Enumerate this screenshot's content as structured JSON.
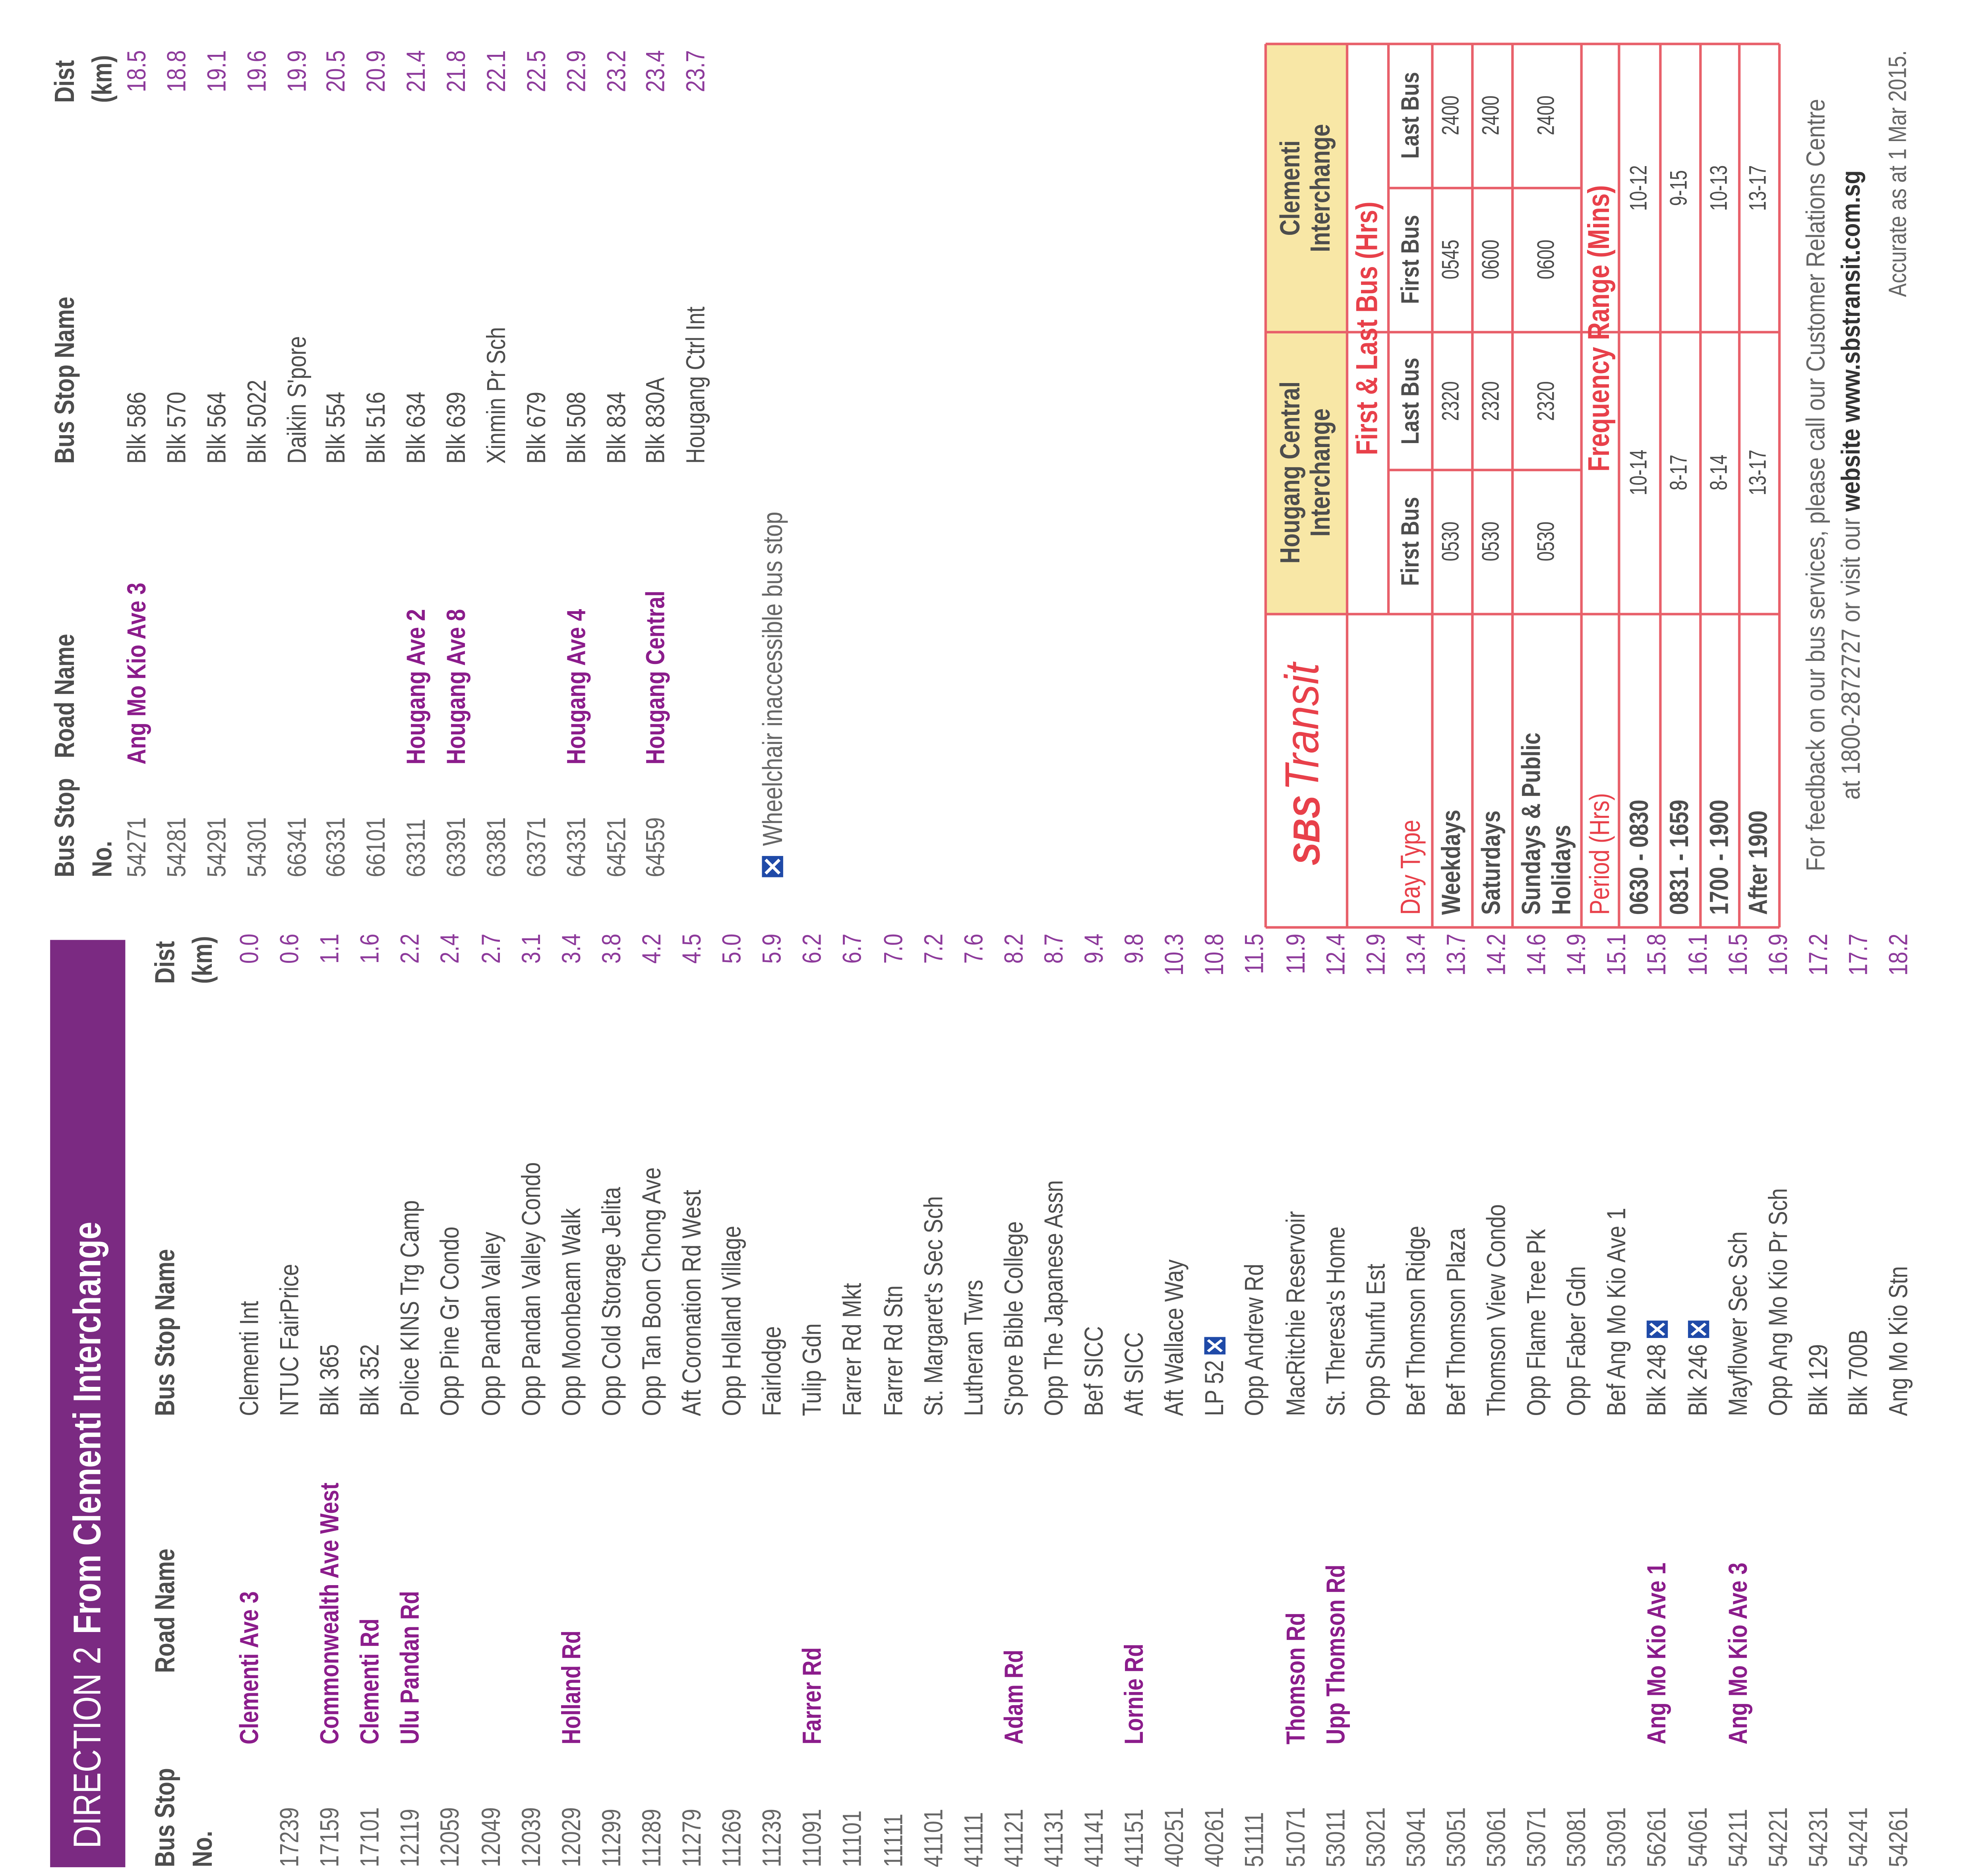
{
  "direction_table": {
    "title": "DIRECTION 2",
    "subtitle": "From Clementi Interchange",
    "headers": [
      "Bus Stop No.",
      "Road Name",
      "Bus Stop Name",
      "Dist (km)"
    ],
    "rows": [
      {
        "road": "Clementi Ave 3",
        "name": "Clementi Int",
        "dist": "0.0"
      },
      {
        "stop_no": "17239",
        "name": "NTUC FairPrice",
        "dist": "0.6"
      },
      {
        "stop_no": "17159",
        "road": "Commonwealth Ave West",
        "name": "Blk 365",
        "dist": "1.1"
      },
      {
        "stop_no": "17101",
        "road": "Clementi Rd",
        "name": "Blk 352",
        "dist": "1.6"
      },
      {
        "stop_no": "12119",
        "road": "Ulu Pandan Rd",
        "name": "Police KINS Trg Camp",
        "dist": "2.2"
      },
      {
        "stop_no": "12059",
        "name": "Opp Pine Gr Condo",
        "dist": "2.4"
      },
      {
        "stop_no": "12049",
        "name": "Opp Pandan Valley",
        "dist": "2.7"
      },
      {
        "stop_no": "12039",
        "name": "Opp Pandan Valley Condo",
        "dist": "3.1"
      },
      {
        "stop_no": "12029",
        "road": "Holland Rd",
        "name": "Opp Moonbeam Walk",
        "dist": "3.4"
      },
      {
        "stop_no": "11299",
        "name": "Opp Cold Storage Jelita",
        "dist": "3.8"
      },
      {
        "stop_no": "11289",
        "name": "Opp Tan Boon Chong Ave",
        "dist": "4.2"
      },
      {
        "stop_no": "11279",
        "name": "Aft Coronation Rd West",
        "dist": "4.5"
      },
      {
        "stop_no": "11269",
        "name": "Opp Holland Village",
        "dist": "5.0"
      },
      {
        "stop_no": "11239",
        "name": "Fairlodge",
        "dist": "5.9"
      },
      {
        "stop_no": "11091",
        "road": "Farrer Rd",
        "name": "Tulip Gdn",
        "dist": "6.2"
      },
      {
        "stop_no": "11101",
        "name": "Farrer Rd Mkt",
        "dist": "6.7"
      },
      {
        "stop_no": "11111",
        "name": "Farrer Rd Stn",
        "dist": "7.0"
      },
      {
        "stop_no": "41101",
        "name": "St. Margaret's Sec Sch",
        "dist": "7.2"
      },
      {
        "stop_no": "41111",
        "name": "Lutheran Twrs",
        "dist": "7.6"
      },
      {
        "stop_no": "41121",
        "road": "Adam Rd",
        "name": "S'pore Bible College",
        "dist": "8.2"
      },
      {
        "stop_no": "41131",
        "name": "Opp The Japanese Assn",
        "dist": "8.7"
      },
      {
        "stop_no": "41141",
        "name": "Bef SICC",
        "dist": "9.4"
      },
      {
        "stop_no": "41151",
        "road": "Lornie Rd",
        "name": "Aft SICC",
        "dist": "9.8"
      },
      {
        "stop_no": "40251",
        "name": "Aft Wallace Way",
        "dist": "10.3"
      },
      {
        "stop_no": "40261",
        "name": "LP 52",
        "dist": "10.8",
        "inaccessible": true
      },
      {
        "stop_no": "51111",
        "name": "Opp Andrew Rd",
        "dist": "11.5"
      },
      {
        "stop_no": "51071",
        "road": "Thomson Rd",
        "name": "MacRitchie Reservoir",
        "dist": "11.9"
      },
      {
        "stop_no": "53011",
        "road": "Upp Thomson Rd",
        "name": "St. Theresa's Home",
        "dist": "12.4"
      },
      {
        "stop_no": "53021",
        "name": "Opp Shunfu Est",
        "dist": "12.9"
      },
      {
        "stop_no": "53041",
        "name": "Bef Thomson Ridge",
        "dist": "13.4"
      },
      {
        "stop_no": "53051",
        "name": "Bef Thomson Plaza",
        "dist": "13.7"
      },
      {
        "stop_no": "53061",
        "name": "Thomson View Condo",
        "dist": "14.2"
      },
      {
        "stop_no": "53071",
        "name": "Opp Flame Tree Pk",
        "dist": "14.6"
      },
      {
        "stop_no": "53081",
        "name": "Opp Faber Gdn",
        "dist": "14.9"
      },
      {
        "stop_no": "53091",
        "name": "Bef Ang Mo Kio Ave 1",
        "dist": "15.1"
      },
      {
        "stop_no": "56261",
        "road": "Ang Mo Kio Ave 1",
        "name": "Blk 248",
        "dist": "15.8",
        "inaccessible": true
      },
      {
        "stop_no": "54061",
        "name": "Blk 246",
        "dist": "16.1",
        "inaccessible": true
      },
      {
        "stop_no": "54211",
        "road": "Ang Mo Kio Ave 3",
        "name": "Mayflower Sec Sch",
        "dist": "16.5"
      },
      {
        "stop_no": "54221",
        "name": "Opp Ang Mo Kio Pr Sch",
        "dist": "16.9"
      },
      {
        "stop_no": "54231",
        "name": "Blk 129",
        "dist": "17.2"
      },
      {
        "stop_no": "54241",
        "name": "Blk 700B",
        "dist": "17.7"
      },
      {
        "stop_no": "54261",
        "name": "Ang Mo Kio Stn",
        "dist": "18.2"
      }
    ]
  },
  "continuation_table": {
    "headers": [
      "Bus Stop No.",
      "Road Name",
      "Bus Stop Name",
      "Dist (km)"
    ],
    "rows": [
      {
        "stop_no": "54271",
        "road": "Ang Mo Kio Ave 3",
        "name": "Blk 586",
        "dist": "18.5"
      },
      {
        "stop_no": "54281",
        "name": "Blk 570",
        "dist": "18.8"
      },
      {
        "stop_no": "54291",
        "name": "Blk 564",
        "dist": "19.1"
      },
      {
        "stop_no": "54301",
        "name": "Blk 5022",
        "dist": "19.6"
      },
      {
        "stop_no": "66341",
        "name": "Daikin S'pore",
        "dist": "19.9"
      },
      {
        "stop_no": "66331",
        "name": "Blk 554",
        "dist": "20.5"
      },
      {
        "stop_no": "66101",
        "name": "Blk 516",
        "dist": "20.9"
      },
      {
        "stop_no": "63311",
        "road": "Hougang Ave 2",
        "name": "Blk 634",
        "dist": "21.4"
      },
      {
        "stop_no": "63391",
        "road": "Hougang Ave 8",
        "name": "Blk 639",
        "dist": "21.8"
      },
      {
        "stop_no": "63381",
        "name": "Xinmin Pr Sch",
        "dist": "22.1"
      },
      {
        "stop_no": "63371",
        "name": "Blk 679",
        "dist": "22.5"
      },
      {
        "stop_no": "64331",
        "road": "Hougang Ave 4",
        "name": "Blk 508",
        "dist": "22.9"
      },
      {
        "stop_no": "64521",
        "name": "Blk 834",
        "dist": "23.2"
      },
      {
        "stop_no": "64559",
        "road": "Hougang Central",
        "name": "Blk 830A",
        "dist": "23.4"
      },
      {
        "name": "Hougang Ctrl Int",
        "dist": "23.7"
      }
    ]
  },
  "legend": {
    "text": "Wheelchair inaccessible bus stop"
  },
  "schedule": {
    "brand": [
      "SBS",
      "Transit"
    ],
    "interchanges": [
      "Hougang Central Interchange",
      "Clementi Interchange"
    ],
    "first_last_heading": "First & Last Bus (Hrs)",
    "day_type_heading": "Day Type",
    "sub_headers": [
      "First Bus",
      "Last Bus",
      "First Bus",
      "Last Bus"
    ],
    "day_rows": [
      {
        "label": "Weekdays",
        "times": [
          "0530",
          "2320",
          "0545",
          "2400"
        ]
      },
      {
        "label": "Saturdays",
        "times": [
          "0530",
          "2320",
          "0600",
          "2400"
        ]
      },
      {
        "label": "Sundays & Public Holidays",
        "times": [
          "0530",
          "2320",
          "0600",
          "2400"
        ]
      }
    ],
    "period_heading": "Period (Hrs)",
    "frequency_heading": "Frequency Range (Mins)",
    "period_rows": [
      {
        "label": "0630 - 0830",
        "ranges": [
          "10-14",
          "10-12"
        ]
      },
      {
        "label": "0831 - 1659",
        "ranges": [
          "8-17",
          "9-15"
        ]
      },
      {
        "label": "1700 - 1900",
        "ranges": [
          "8-14",
          "10-13"
        ]
      },
      {
        "label": "After 1900",
        "ranges": [
          "13-17",
          "13-17"
        ]
      }
    ]
  },
  "footer": {
    "feedback_line1": "For feedback on our bus services, please call our Customer Relations Centre",
    "feedback_line2": "at 1800-2872727 or visit our",
    "website": "website www.sbstransit.com.sg",
    "accurate": "Accurate as at 1 Mar 2015."
  }
}
